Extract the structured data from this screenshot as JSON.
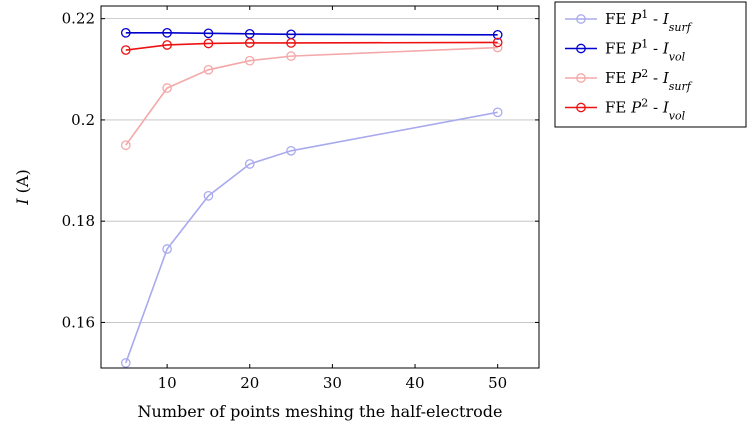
{
  "chart_data": {
    "type": "line",
    "xlabel": "Number of points meshing the half-electrode",
    "ylabel_var": "I",
    "ylabel_unit": " (A)",
    "xlim": [
      2,
      55
    ],
    "ylim": [
      0.151,
      0.2225
    ],
    "xticks": [
      10,
      20,
      30,
      40,
      50
    ],
    "yticks": [
      0.16,
      0.18,
      0.2,
      0.22
    ],
    "ytick_labels": [
      "0.16",
      "0.18",
      "0.2",
      "0.22"
    ],
    "grid": "horizontal",
    "legend_position": "outside-right",
    "x": [
      5,
      10,
      15,
      20,
      25,
      50
    ],
    "series": [
      {
        "name_prefix": "FE ",
        "name_var": "P",
        "name_sup": "1",
        "name_mid": " - ",
        "name_var2": "I",
        "name_sub": "surf",
        "color": "#aaaaee",
        "values": [
          0.152,
          0.1745,
          0.185,
          0.1913,
          0.1939,
          0.2015
        ]
      },
      {
        "name_prefix": "FE ",
        "name_var": "P",
        "name_sup": "1",
        "name_mid": " - ",
        "name_var2": "I",
        "name_sub": "vol",
        "color": "#0000cc",
        "values": [
          0.2172,
          0.2172,
          0.2171,
          0.217,
          0.2169,
          0.2168
        ]
      },
      {
        "name_prefix": "FE ",
        "name_var": "P",
        "name_sup": "2",
        "name_mid": " - ",
        "name_var2": "I",
        "name_sub": "surf",
        "color": "#f4a8a8",
        "values": [
          0.195,
          0.2063,
          0.2099,
          0.2117,
          0.2126,
          0.2143
        ]
      },
      {
        "name_prefix": "FE ",
        "name_var": "P",
        "name_sup": "2",
        "name_mid": " - ",
        "name_var2": "I",
        "name_sub": "vol",
        "color": "#ee1111",
        "values": [
          0.2138,
          0.2148,
          0.2151,
          0.2152,
          0.2152,
          0.2153
        ]
      }
    ]
  }
}
